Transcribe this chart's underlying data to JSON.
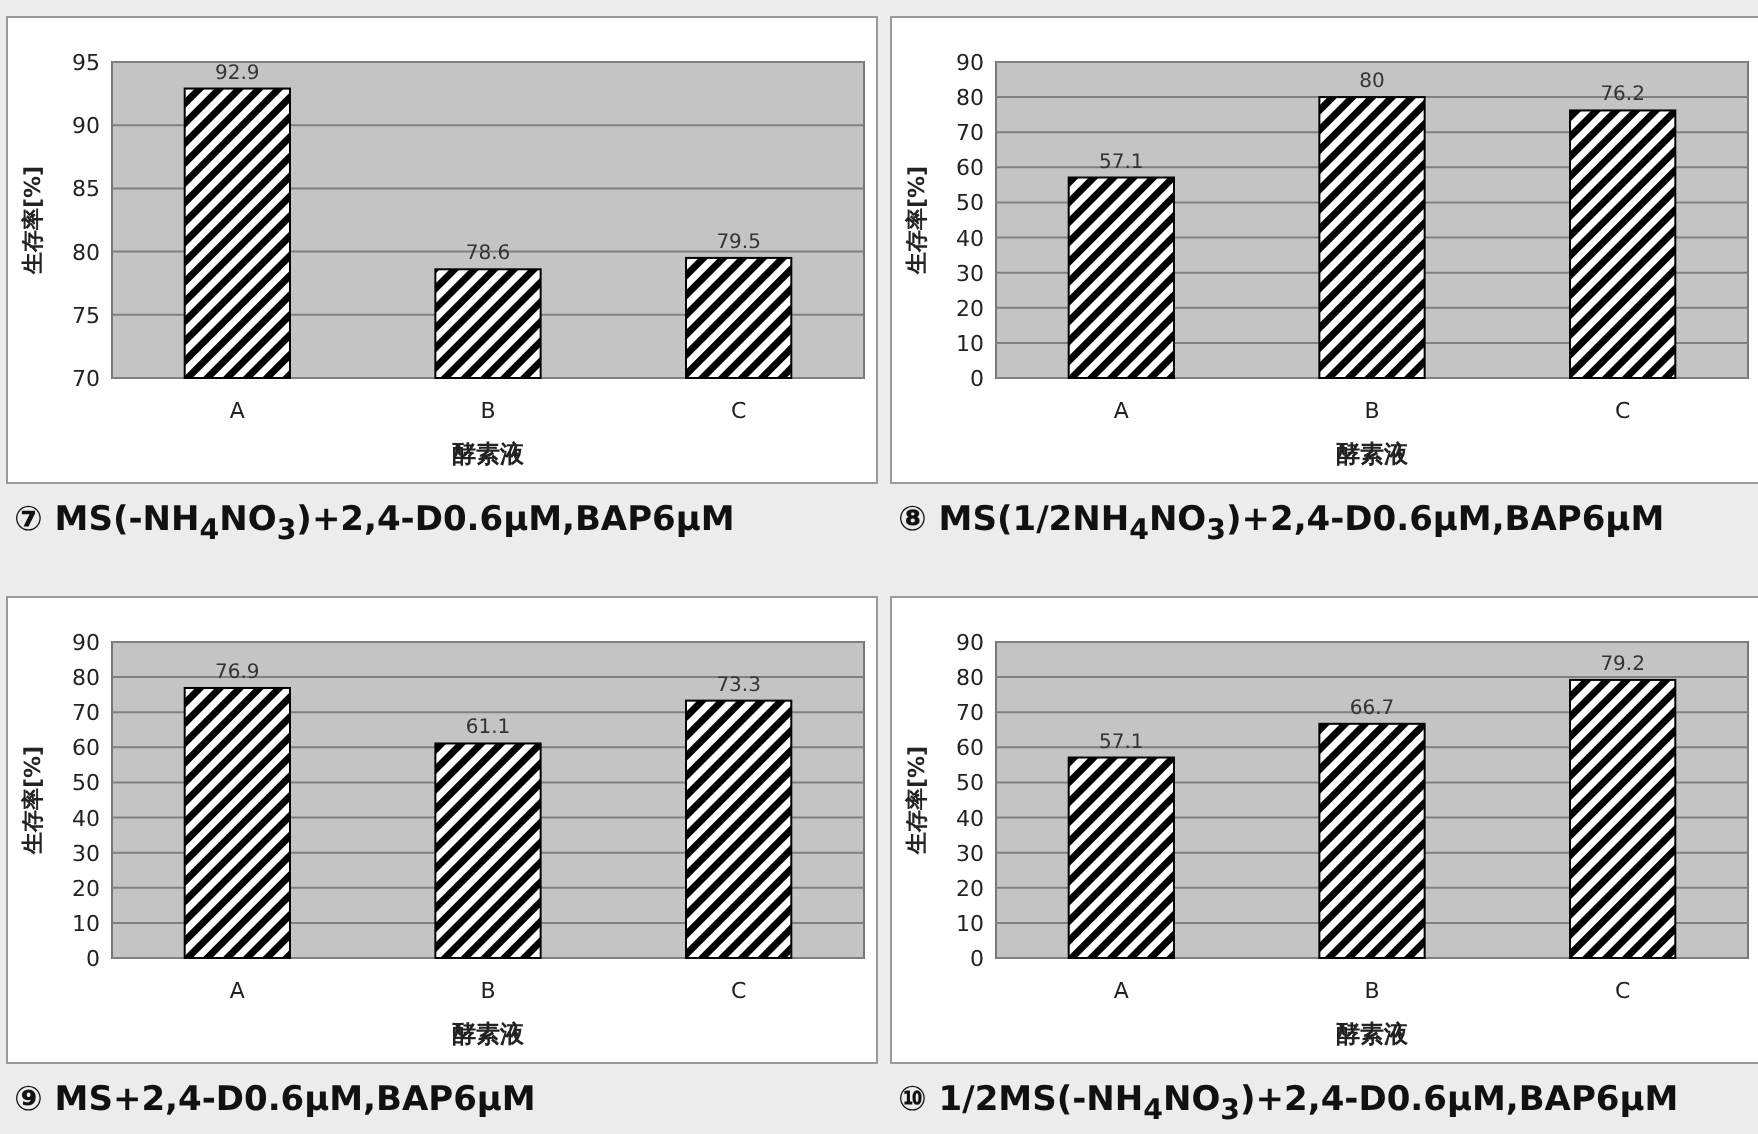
{
  "chart_data": [
    {
      "type": "bar",
      "title": "⑦ MS(-NH$_{4}$NO$_{3}$)+2,4-D0.6μM,BAP6μM",
      "xlabel": "酵素液",
      "ylabel": "生存率[%]",
      "categories": [
        "A",
        "B",
        "C"
      ],
      "values": [
        92.9,
        78.6,
        79.5
      ],
      "color": "#000000",
      "ylim": [
        70,
        95
      ],
      "yticks": [
        70,
        75,
        80,
        85,
        90,
        95
      ],
      "grid": "y",
      "data_labels": true
    },
    {
      "type": "bar",
      "title": "⑧ MS(1/2NH$_{4}$NO$_{3}$)+2,4-D0.6μM,BAP6μM",
      "xlabel": "酵素液",
      "ylabel": "生存率[%]",
      "categories": [
        "A",
        "B",
        "C"
      ],
      "values": [
        57.1,
        80,
        76.2
      ],
      "color": "#000000",
      "ylim": [
        0,
        90
      ],
      "yticks": [
        0,
        10,
        20,
        30,
        40,
        50,
        60,
        70,
        80,
        90
      ],
      "grid": "y",
      "data_labels": true
    },
    {
      "type": "bar",
      "title": "⑨ MS+2,4-D0.6μM,BAP6μM",
      "xlabel": "酵素液",
      "ylabel": "生存率[%]",
      "categories": [
        "A",
        "B",
        "C"
      ],
      "values": [
        76.9,
        61.1,
        73.3
      ],
      "color": "#000000",
      "ylim": [
        0,
        90
      ],
      "yticks": [
        0,
        10,
        20,
        30,
        40,
        50,
        60,
        70,
        80,
        90
      ],
      "grid": "y",
      "data_labels": true
    },
    {
      "type": "bar",
      "title": "⑩ 1/2MS(-NH$_{4}$NO$_{3}$)+2,4-D0.6μM,BAP6μM",
      "xlabel": "酵素液",
      "ylabel": "生存率[%]",
      "categories": [
        "A",
        "B",
        "C"
      ],
      "values": [
        57.1,
        66.7,
        79.2
      ],
      "color": "#000000",
      "ylim": [
        0,
        90
      ],
      "yticks": [
        0,
        10,
        20,
        30,
        40,
        50,
        60,
        70,
        80,
        90
      ],
      "grid": "y",
      "data_labels": true
    }
  ]
}
